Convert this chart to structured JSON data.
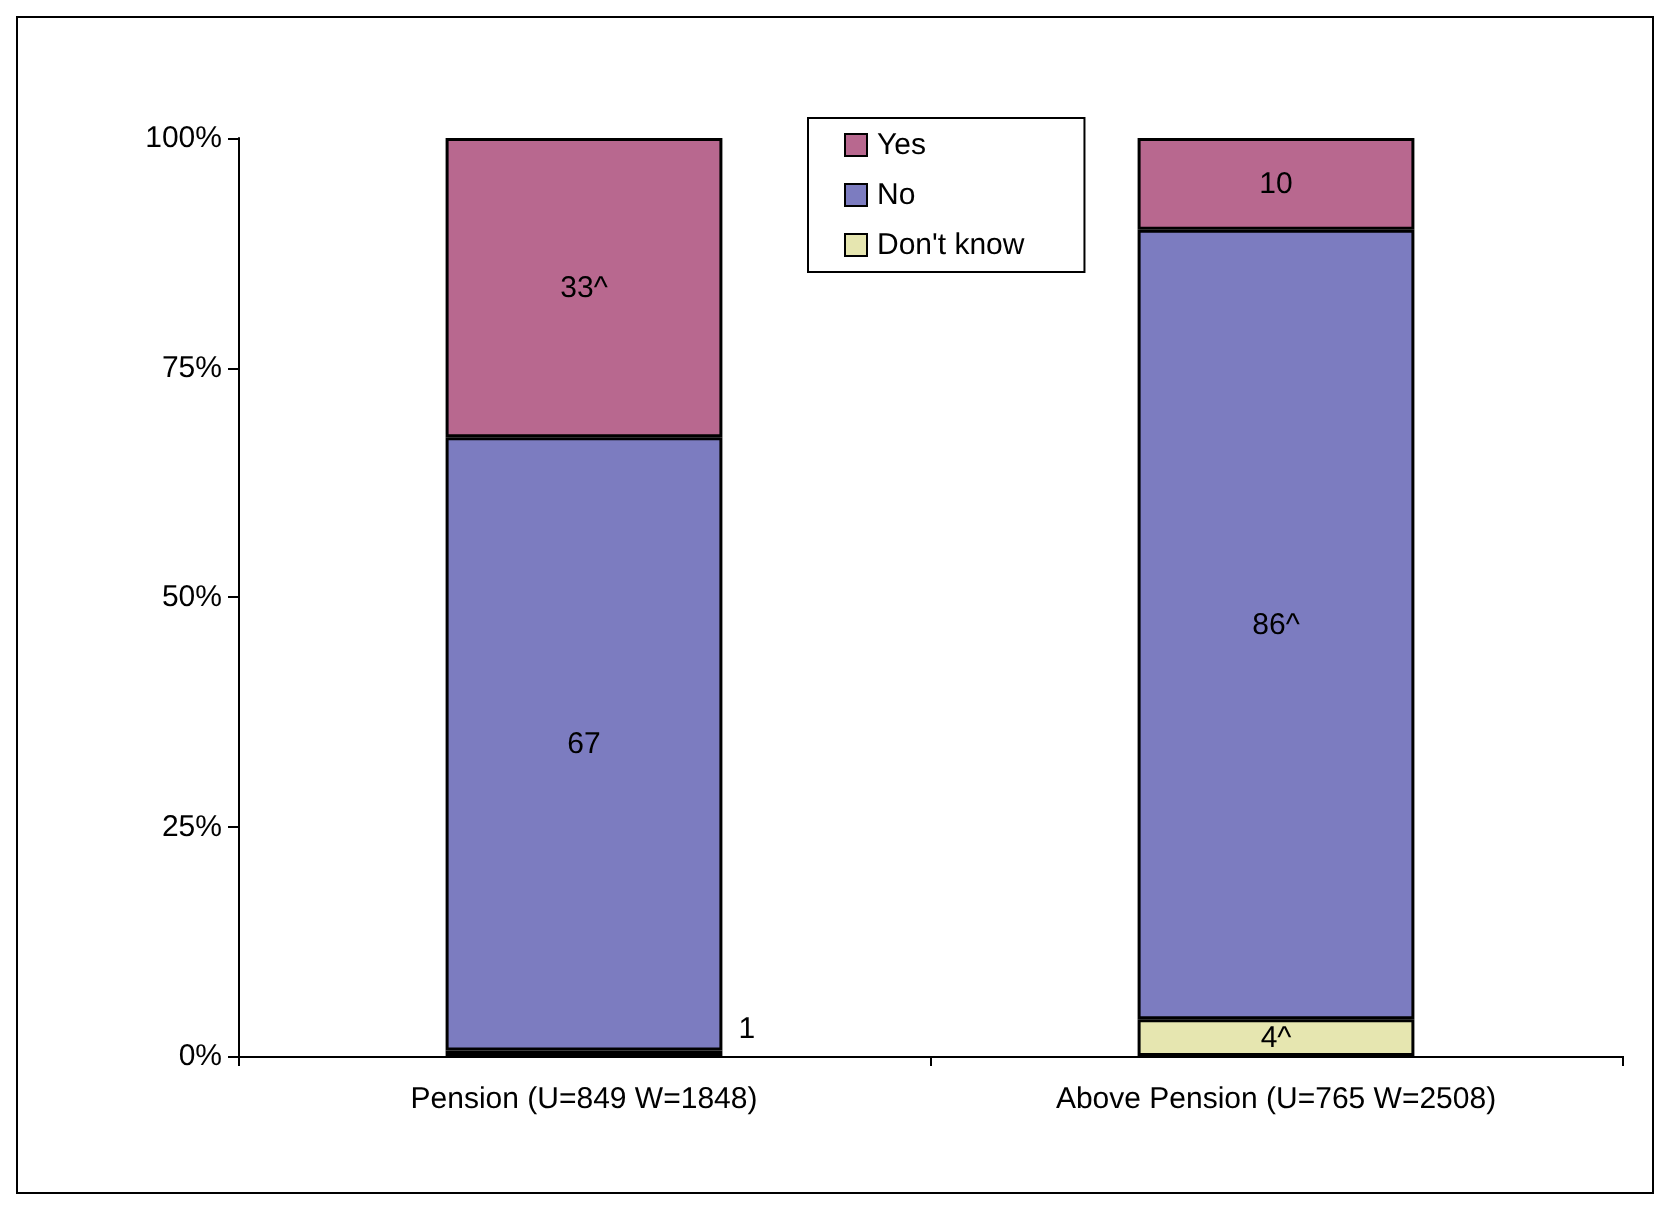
{
  "chart_data": {
    "type": "bar",
    "stacked": true,
    "categories": [
      "Pension (U=849 W=1848)",
      "Above Pension (U=765 W=2508)"
    ],
    "series": [
      {
        "name": "Don't know",
        "color": "#e6e6b0",
        "values": [
          0.6,
          4
        ],
        "value_labels": [
          "1",
          "4^"
        ]
      },
      {
        "name": "No",
        "color": "#7c7cc0",
        "values": [
          66.8,
          86
        ],
        "value_labels": [
          "67",
          "86^"
        ]
      },
      {
        "name": "Yes",
        "color": "#b8688f",
        "values": [
          32.6,
          10
        ],
        "value_labels": [
          "33^",
          "10"
        ]
      }
    ],
    "ylim": [
      0,
      100
    ],
    "yticks": [
      {
        "value": 0,
        "label": "0%"
      },
      {
        "value": 25,
        "label": "25%"
      },
      {
        "value": 50,
        "label": "50%"
      },
      {
        "value": 75,
        "label": "75%"
      },
      {
        "value": 100,
        "label": "100%"
      }
    ],
    "grid": false,
    "legend": "top"
  }
}
